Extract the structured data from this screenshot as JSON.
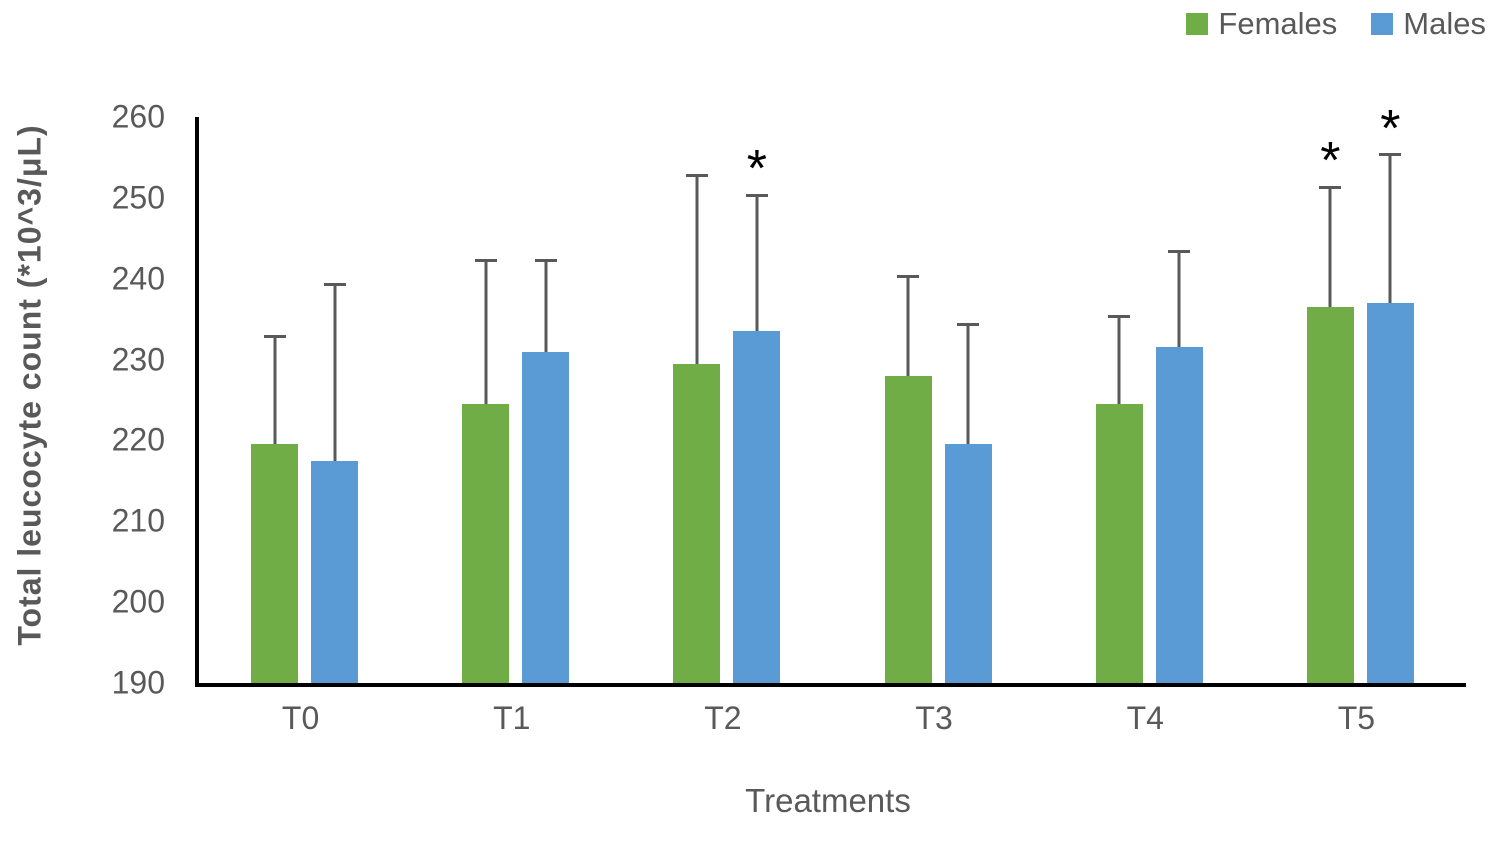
{
  "chart_data": {
    "type": "bar",
    "title": "",
    "xlabel": "Treatments",
    "ylabel": "Total leucocyte count (*10^3/μL)",
    "categories": [
      "T0",
      "T1",
      "T2",
      "T3",
      "T4",
      "T5"
    ],
    "series": [
      {
        "name": "Females",
        "color": "#70AD47",
        "values": [
          219.5,
          224.5,
          229.5,
          228.0,
          224.5,
          236.5
        ],
        "error_plus": [
          13.5,
          18.0,
          23.5,
          12.5,
          11.0,
          15.0
        ],
        "significant": [
          false,
          false,
          false,
          false,
          false,
          true
        ]
      },
      {
        "name": "Males",
        "color": "#5B9BD5",
        "values": [
          217.5,
          231.0,
          233.5,
          219.5,
          231.5,
          237.0
        ],
        "error_plus": [
          22.0,
          11.5,
          17.0,
          15.0,
          12.0,
          18.5
        ],
        "significant": [
          false,
          false,
          true,
          false,
          false,
          true
        ]
      }
    ],
    "ylim": [
      190,
      260
    ],
    "yticks": [
      190,
      200,
      210,
      220,
      230,
      240,
      250,
      260
    ],
    "grid": false,
    "legend_position": "top-right",
    "significance_marker": "*",
    "error_bar_color": "#595959",
    "axis_color": "#000000",
    "label_color": "#595959"
  }
}
